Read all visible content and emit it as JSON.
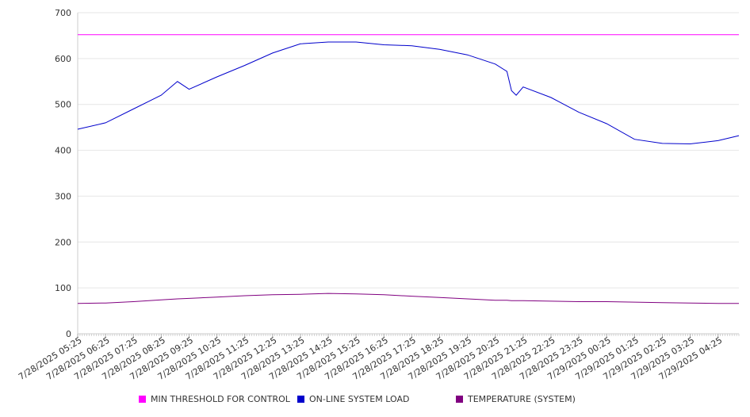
{
  "chart_data": {
    "type": "line",
    "ylim": [
      0,
      700
    ],
    "yticks": [
      0,
      100,
      200,
      300,
      400,
      500,
      600,
      700
    ],
    "grid": true,
    "legend_placement": "bottom",
    "x_range": [
      "7/28/2025 05:25",
      "7/29/2025 05:10"
    ],
    "categories": [
      "7/28/2025 05:25",
      "7/28/2025 06:25",
      "7/28/2025 07:25",
      "7/28/2025 08:25",
      "7/28/2025 09:25",
      "7/28/2025 10:25",
      "7/28/2025 11:25",
      "7/28/2025 12:25",
      "7/28/2025 13:25",
      "7/28/2025 14:25",
      "7/28/2025 15:25",
      "7/28/2025 16:25",
      "7/28/2025 17:25",
      "7/28/2025 18:25",
      "7/28/2025 19:25",
      "7/28/2025 20:25",
      "7/28/2025 21:25",
      "7/28/2025 22:25",
      "7/28/2025 23:25",
      "7/29/2025 00:25",
      "7/29/2025 01:25",
      "7/29/2025 02:25",
      "7/29/2025 03:25",
      "7/29/2025 04:25"
    ],
    "x": [
      "7/28/2025 05:25",
      "7/28/2025 06:25",
      "7/28/2025 07:25",
      "7/28/2025 08:25",
      "7/28/2025 09:00",
      "7/28/2025 09:25",
      "7/28/2025 10:25",
      "7/28/2025 11:25",
      "7/28/2025 12:25",
      "7/28/2025 13:25",
      "7/28/2025 14:25",
      "7/28/2025 15:25",
      "7/28/2025 16:25",
      "7/28/2025 17:25",
      "7/28/2025 18:25",
      "7/28/2025 19:25",
      "7/28/2025 20:25",
      "7/28/2025 20:50",
      "7/28/2025 21:00",
      "7/28/2025 21:10",
      "7/28/2025 21:25",
      "7/28/2025 22:25",
      "7/28/2025 23:25",
      "7/29/2025 00:25",
      "7/29/2025 01:25",
      "7/29/2025 02:25",
      "7/29/2025 03:25",
      "7/29/2025 04:25",
      "7/29/2025 05:10"
    ],
    "series": [
      {
        "name": "MIN THRESHOLD FOR CONTROL",
        "color": "#ff00ff",
        "values": [
          652,
          652,
          652,
          652,
          652,
          652,
          652,
          652,
          652,
          652,
          652,
          652,
          652,
          652,
          652,
          652,
          652,
          652,
          652,
          652,
          652,
          652,
          652,
          652,
          652,
          652,
          652,
          652,
          652
        ]
      },
      {
        "name": "ON-LINE SYSTEM LOAD",
        "color": "#0000cc",
        "values": [
          446,
          460,
          490,
          520,
          550,
          533,
          560,
          585,
          612,
          632,
          636,
          636,
          630,
          628,
          620,
          608,
          588,
          572,
          530,
          520,
          538,
          515,
          483,
          458,
          424,
          415,
          414,
          421,
          432
        ]
      },
      {
        "name": "TEMPERATURE (SYSTEM)",
        "color": "#800080",
        "values": [
          66,
          67,
          70,
          74,
          76,
          77,
          80,
          83,
          85,
          86,
          88,
          87,
          85,
          82,
          79,
          76,
          73,
          73,
          72,
          72,
          72,
          71,
          70,
          70,
          69,
          68,
          67,
          66,
          66
        ]
      }
    ]
  }
}
